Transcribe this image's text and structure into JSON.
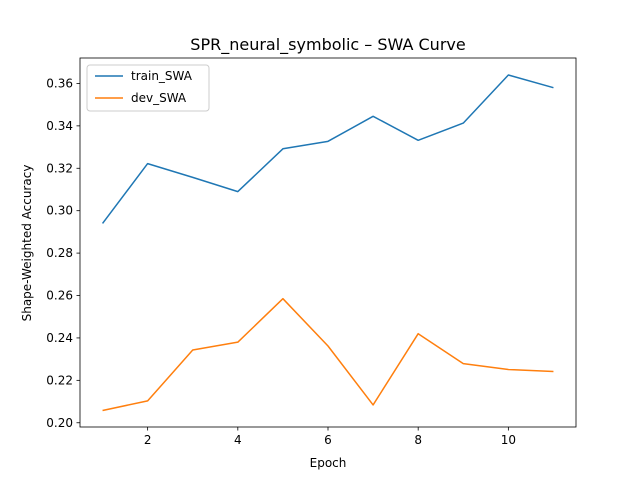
{
  "chart_data": {
    "type": "line",
    "title": "SPR_neural_symbolic – SWA Curve",
    "xlabel": "Epoch",
    "ylabel": "Shape-Weighted Accuracy",
    "xlim": [
      0.5,
      11.5
    ],
    "ylim": [
      0.198,
      0.372
    ],
    "x_ticks": [
      2,
      4,
      6,
      8,
      10
    ],
    "y_ticks": [
      0.2,
      0.22,
      0.24,
      0.26,
      0.28,
      0.3,
      0.32,
      0.34,
      0.36
    ],
    "x_tick_labels": [
      "2",
      "4",
      "6",
      "8",
      "10"
    ],
    "y_tick_labels": [
      "0.20",
      "0.22",
      "0.24",
      "0.26",
      "0.28",
      "0.30",
      "0.32",
      "0.34",
      "0.36"
    ],
    "grid": false,
    "legend_position": "upper-left",
    "x": [
      1,
      2,
      3,
      4,
      5,
      6,
      7,
      8,
      9,
      10,
      11
    ],
    "series": [
      {
        "name": "train_SWA",
        "color": "#1f77b4",
        "values": [
          0.294,
          0.3222,
          0.3157,
          0.309,
          0.3292,
          0.3327,
          0.3445,
          0.3332,
          0.3413,
          0.364,
          0.358
        ]
      },
      {
        "name": "dev_SWA",
        "color": "#ff7f0e",
        "values": [
          0.2058,
          0.2103,
          0.2343,
          0.238,
          0.2585,
          0.2362,
          0.2084,
          0.242,
          0.2279,
          0.2251,
          0.2242
        ]
      }
    ]
  }
}
